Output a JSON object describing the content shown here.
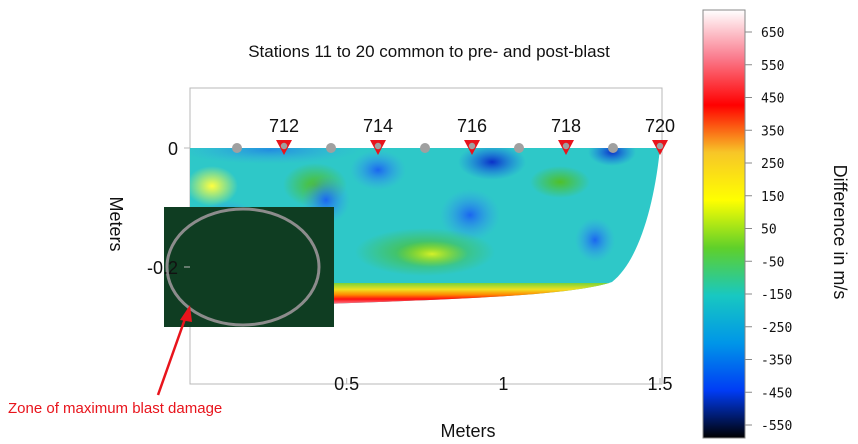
{
  "chart_data": {
    "type": "heatmap",
    "title": "Stations 11 to 20 common to pre- and post-blast",
    "xlabel": "Meters",
    "ylabel": "Meters",
    "x_ticks": [
      {
        "value": 0.5,
        "label": "0.5"
      },
      {
        "value": 1,
        "label": "1"
      },
      {
        "value": 1.5,
        "label": "1.5"
      }
    ],
    "y_ticks": [
      {
        "value": 0,
        "label": "0"
      },
      {
        "value": -0.2,
        "label": "-0.2"
      }
    ],
    "xlim": [
      0,
      1.5
    ],
    "ylim": [
      -0.32,
      0.09
    ],
    "stations": [
      {
        "label": "712",
        "x": 0.3
      },
      {
        "label": "714",
        "x": 0.6
      },
      {
        "label": "716",
        "x": 0.9
      },
      {
        "label": "718",
        "x": 1.2
      },
      {
        "label": "720",
        "x": 1.5
      }
    ],
    "geophones_x": [
      0.15,
      0.45,
      0.75,
      1.05,
      1.35
    ],
    "colorbar": {
      "label": "Difference in m/s",
      "ticks": [
        "650",
        "550",
        "450",
        "350",
        "250",
        "150",
        "50",
        "-50",
        "-150",
        "-250",
        "-350",
        "-450",
        "-550"
      ],
      "range": [
        -600,
        700
      ],
      "colors": [
        "#ffffff",
        "#fa7c8e",
        "#ff0000",
        "#f7c628",
        "#ffff00",
        "#5fd02a",
        "#18c8c1",
        "#0096e8",
        "#003cf5",
        "#000000"
      ]
    },
    "annotation": {
      "text": "Zone of maximum blast damage",
      "color": "#e8141c"
    },
    "mask_color": "#0f3d22"
  }
}
